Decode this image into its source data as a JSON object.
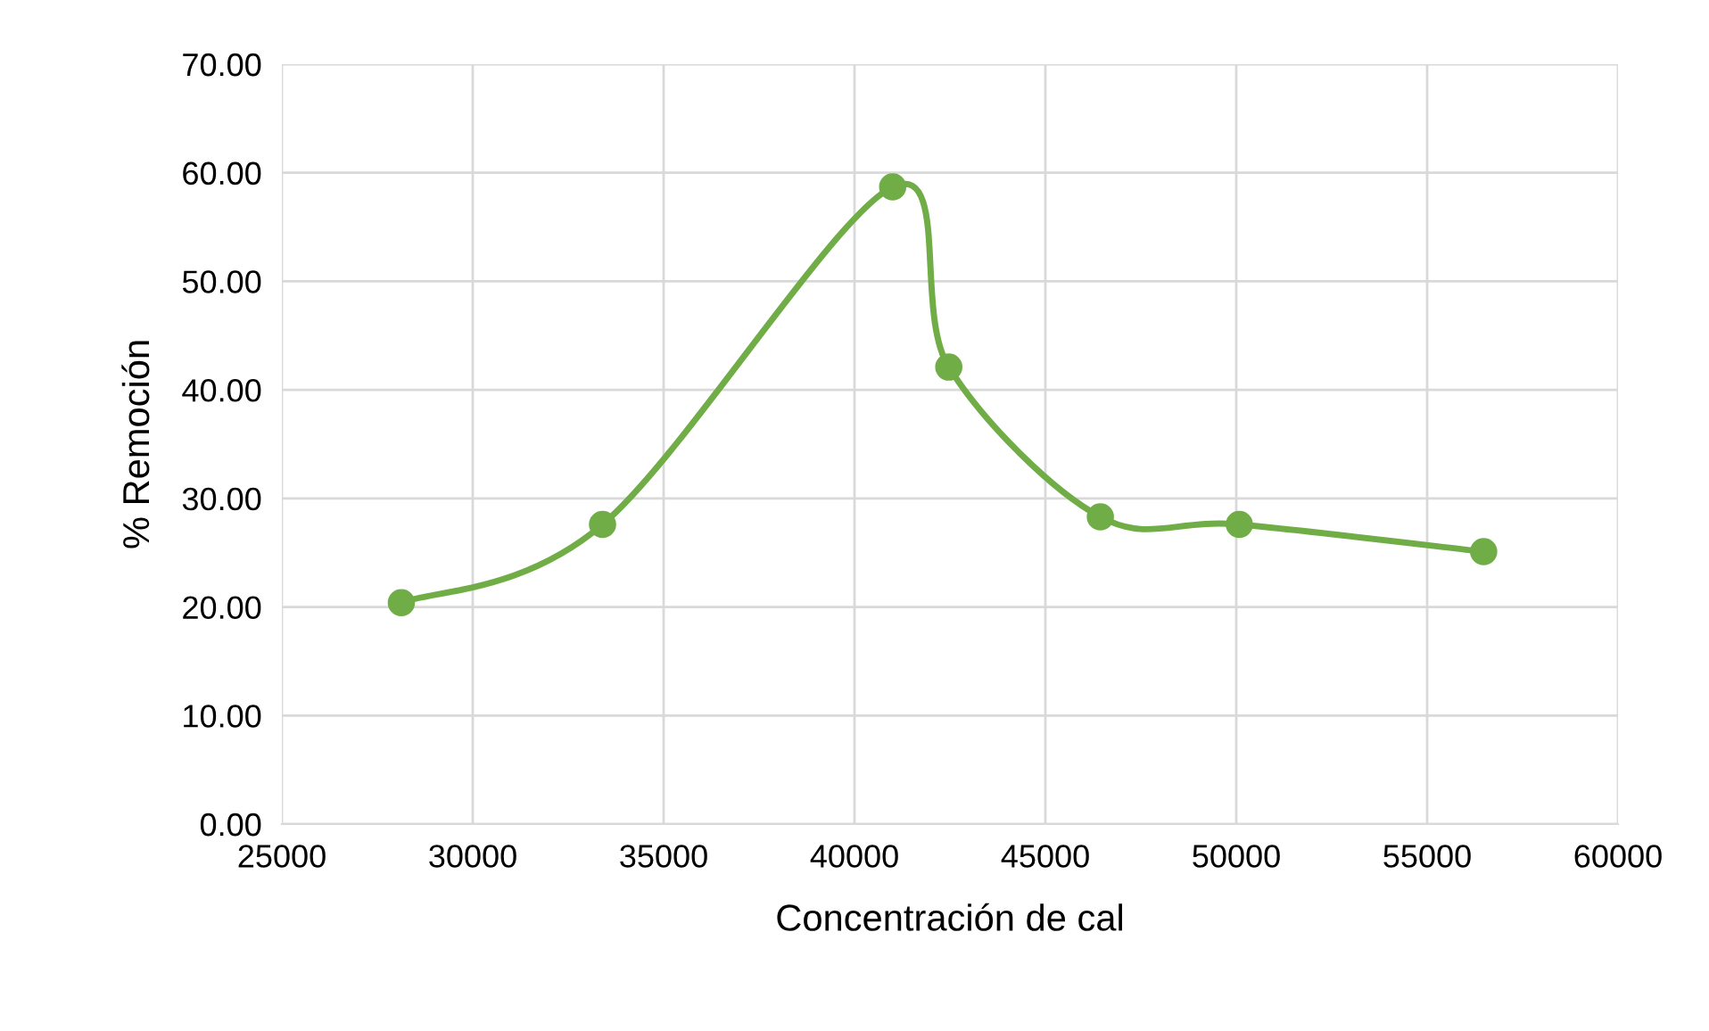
{
  "chart_data": {
    "type": "line",
    "xlabel": "Concentración de cal",
    "ylabel": "% Remoción",
    "x": [
      28130,
      33400,
      41000,
      42470,
      46440,
      50080,
      56480
    ],
    "series": [
      {
        "color": "#70ad47",
        "values": [
          20.4,
          27.6,
          58.7,
          42.1,
          28.3,
          27.6,
          25.1
        ]
      }
    ],
    "xlim": [
      25000,
      60000
    ],
    "xticks": [
      25000,
      30000,
      35000,
      40000,
      45000,
      50000,
      55000,
      60000
    ],
    "ylim": [
      0,
      70
    ],
    "yticks": [
      {
        "value": 0,
        "label": "0.00"
      },
      {
        "value": 10,
        "label": "10.00"
      },
      {
        "value": 20,
        "label": "20.00"
      },
      {
        "value": 30,
        "label": "30.00"
      },
      {
        "value": 40,
        "label": "40.00"
      },
      {
        "value": 50,
        "label": "50.00"
      },
      {
        "value": 60,
        "label": "60.00"
      },
      {
        "value": 70,
        "label": "70.00"
      }
    ],
    "grid": true,
    "marker": "circle",
    "line_style": "solid",
    "legend": false
  }
}
